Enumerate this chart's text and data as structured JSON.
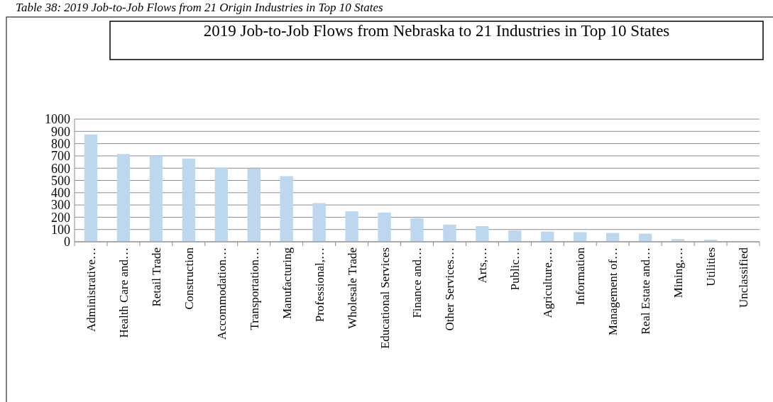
{
  "chart_data": {
    "type": "bar",
    "title": "2019 Job-to-Job Flows from Nebraska to 21 Industries in Top 10 States",
    "annotations": [
      "Table 38: 2019 Job-to-Job Flows from 21 Origin Industries in Top 10 States"
    ],
    "categories": [
      "Administrative…",
      "Health Care and…",
      "Retail Trade",
      "Construction",
      "Accommodation…",
      "Transportation…",
      "Manufacturing",
      "Professional,…",
      "Wholesale Trade",
      "Educational Services",
      "Finance and…",
      "Other Services…",
      "Arts,…",
      "Public…",
      "Agriculture,…",
      "Information",
      "Management of…",
      "Real Estate and…",
      "Mining,…",
      "Utilities",
      "Unclassified"
    ],
    "values": [
      875,
      715,
      700,
      678,
      607,
      595,
      535,
      315,
      248,
      238,
      192,
      140,
      127,
      92,
      83,
      78,
      72,
      66,
      22,
      17,
      0
    ],
    "color": "#bdd7ee",
    "ylim": [
      0,
      1000
    ],
    "yticks": [
      0,
      100,
      200,
      300,
      400,
      500,
      600,
      700,
      800,
      900,
      1000
    ],
    "grid": "y"
  }
}
